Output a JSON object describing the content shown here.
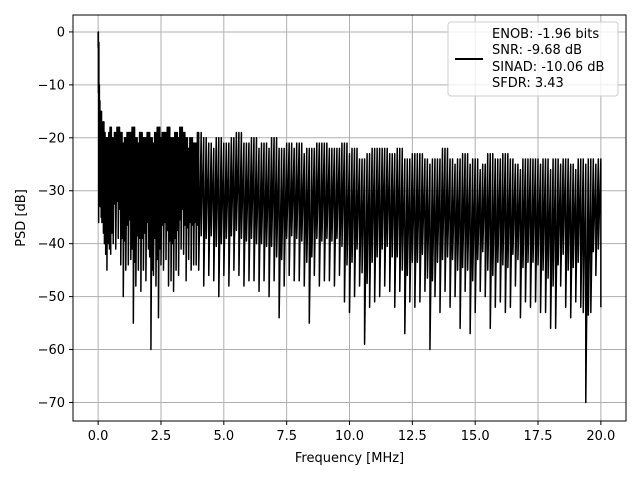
{
  "chart_data": {
    "type": "line",
    "title": "",
    "xlabel": "Frequency [MHz]",
    "ylabel": "PSD [dB]",
    "xlim": [
      -1.0,
      21.0
    ],
    "ylim": [
      -73.5,
      3.2
    ],
    "grid": true,
    "legend_placement": "top-right",
    "x_ticks": [
      0.0,
      2.5,
      5.0,
      7.5,
      10.0,
      12.5,
      15.0,
      17.5,
      20.0
    ],
    "x_tick_labels": [
      "0.0",
      "2.5",
      "5.0",
      "7.5",
      "10.0",
      "12.5",
      "15.0",
      "17.5",
      "20.0"
    ],
    "y_ticks": [
      0,
      -10,
      -20,
      -30,
      -40,
      -50,
      -60,
      -70
    ],
    "y_tick_labels": [
      "0",
      "−10",
      "−20",
      "−30",
      "−40",
      "−50",
      "−60",
      "−70"
    ],
    "legend_lines": [
      "ENOB: -1.96 bits",
      "SNR: -9.68 dB",
      "SINAD: -10.06 dB",
      "SFDR: 3.43"
    ],
    "line_color": "#000000",
    "grid_color": "#b0b0b0",
    "series": [
      {
        "x": [
          0.0,
          0.02,
          0.04,
          0.06,
          0.08,
          0.1,
          0.12,
          0.15,
          0.18,
          0.21,
          0.25,
          0.3,
          0.35,
          0.4,
          0.45,
          0.5,
          0.55,
          0.6,
          0.7,
          0.8,
          0.9,
          1.0,
          1.1,
          1.2,
          1.3,
          1.4,
          1.5,
          1.6,
          1.7,
          1.8,
          1.9,
          2.0,
          2.1,
          2.2,
          2.3,
          2.4,
          2.5,
          2.6,
          2.7,
          2.8,
          2.9,
          3.0,
          3.1,
          3.2,
          3.3,
          3.4,
          3.5,
          3.6,
          3.7,
          3.8,
          3.9,
          4.0,
          4.2,
          4.4,
          4.6,
          4.8,
          5.0,
          5.2,
          5.4,
          5.6,
          5.8,
          6.0,
          6.2,
          6.4,
          6.6,
          6.8,
          7.0,
          7.2,
          7.4,
          7.6,
          7.8,
          8.0,
          8.2,
          8.4,
          8.6,
          8.8,
          9.0,
          9.2,
          9.4,
          9.6,
          9.8,
          10.0,
          10.2,
          10.4,
          10.6,
          10.8,
          11.0,
          11.2,
          11.4,
          11.6,
          11.8,
          12.0,
          12.2,
          12.4,
          12.6,
          12.8,
          13.0,
          13.2,
          13.4,
          13.6,
          13.8,
          14.0,
          14.2,
          14.4,
          14.6,
          14.8,
          15.0,
          15.2,
          15.4,
          15.6,
          15.8,
          16.0,
          16.2,
          16.4,
          16.6,
          16.8,
          17.0,
          17.2,
          17.4,
          17.6,
          17.8,
          18.0,
          18.2,
          18.4,
          18.6,
          18.8,
          19.0,
          19.2,
          19.4,
          19.6,
          19.8,
          20.0
        ],
        "y_min": [
          -3,
          -36,
          -20,
          -28,
          -33,
          -24,
          -35,
          -36,
          -30,
          -38,
          -40,
          -42,
          -45,
          -40,
          -41,
          -42,
          -38,
          -40,
          -41,
          -39,
          -44,
          -50,
          -45,
          -44,
          -43,
          -55,
          -48,
          -45,
          -49,
          -45,
          -47,
          -41,
          -60,
          -46,
          -48,
          -54,
          -44,
          -45,
          -43,
          -48,
          -47,
          -49,
          -45,
          -46,
          -41,
          -42,
          -47,
          -43,
          -45,
          -44,
          -44,
          -45,
          -48,
          -46,
          -47,
          -50,
          -46,
          -48,
          -45,
          -46,
          -48,
          -47,
          -47,
          -49,
          -47,
          -50,
          -47,
          -54,
          -48,
          -46,
          -47,
          -47,
          -48,
          -55,
          -46,
          -48,
          -47,
          -47,
          -48,
          -46,
          -51,
          -53,
          -50,
          -48,
          -59,
          -52,
          -51,
          -50,
          -48,
          -49,
          -52,
          -49,
          -57,
          -51,
          -52,
          -51,
          -49,
          -60,
          -50,
          -53,
          -49,
          -52,
          -50,
          -56,
          -49,
          -57,
          -53,
          -49,
          -50,
          -56,
          -52,
          -51,
          -53,
          -52,
          -48,
          -54,
          -51,
          -52,
          -51,
          -53,
          -53,
          -56,
          -56,
          -48,
          -52,
          -54,
          -51,
          -52,
          -70,
          -53,
          -46,
          -52
        ],
        "y_max": [
          0,
          -2,
          -10,
          -13,
          -15,
          -16,
          -15,
          -18,
          -19,
          -17,
          -19,
          -20,
          -20,
          -21,
          -19,
          -18,
          -21,
          -20,
          -19,
          -18,
          -19,
          -21,
          -20,
          -19,
          -19,
          -18,
          -20,
          -21,
          -19,
          -20,
          -20,
          -19,
          -20,
          -21,
          -19,
          -18,
          -20,
          -19,
          -19,
          -18,
          -20,
          -20,
          -19,
          -20,
          -18,
          -19,
          -20,
          -22,
          -20,
          -21,
          -21,
          -19,
          -20,
          -21,
          -22,
          -20,
          -21,
          -21,
          -20,
          -19,
          -21,
          -21,
          -20,
          -22,
          -21,
          -22,
          -20,
          -22,
          -22,
          -21,
          -22,
          -21,
          -23,
          -22,
          -22,
          -21,
          -21,
          -22,
          -22,
          -22,
          -21,
          -23,
          -22,
          -24,
          -24,
          -23,
          -22,
          -22,
          -22,
          -23,
          -23,
          -22,
          -24,
          -24,
          -23,
          -23,
          -24,
          -25,
          -24,
          -24,
          -22,
          -24,
          -25,
          -24,
          -23,
          -25,
          -24,
          -26,
          -25,
          -23,
          -24,
          -24,
          -23,
          -24,
          -25,
          -26,
          -24,
          -24,
          -24,
          -25,
          -24,
          -26,
          -24,
          -25,
          -24,
          -25,
          -26,
          -24,
          -25,
          -24,
          -25,
          -24
        ]
      }
    ]
  }
}
